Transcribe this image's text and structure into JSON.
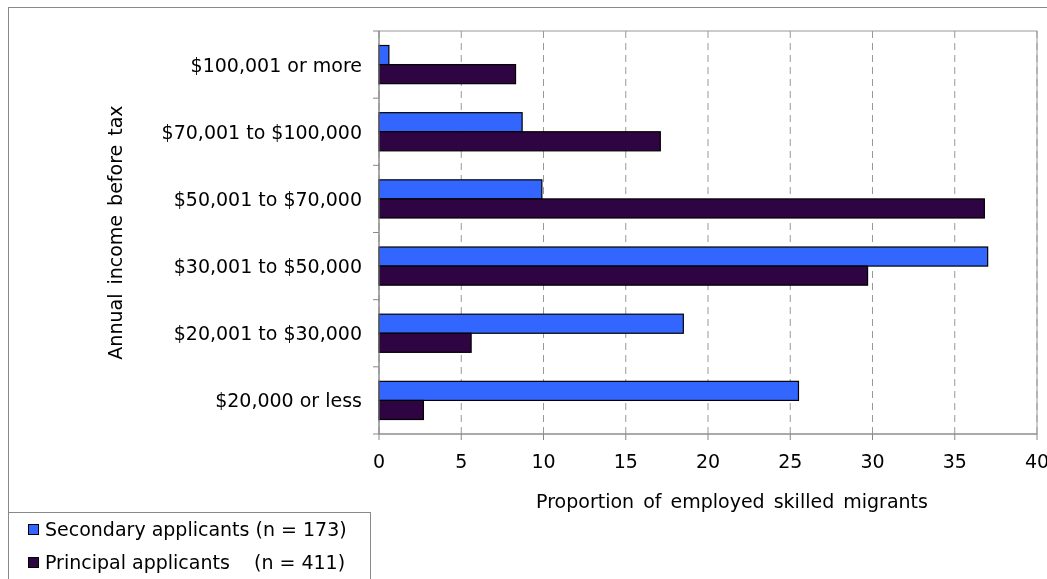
{
  "chart_data": {
    "type": "bar",
    "orientation": "horizontal",
    "ylabel": "Annual income before tax",
    "xlabel": "Proportion of employed skilled migrants",
    "categories": [
      "$100,001 or more",
      "$70,001 to $100,000",
      "$50,001 to $70,000",
      "$30,001 to $50,000",
      "$20,001 to $30,000",
      "$20,000 or less"
    ],
    "series": [
      {
        "name": "Secondary applicants (n = 173)",
        "color": "#3366ff",
        "values": [
          0.6,
          8.7,
          9.9,
          37.0,
          18.5,
          25.5
        ]
      },
      {
        "name": "Principal applicants    (n = 411)",
        "color": "#2e0542",
        "values": [
          8.3,
          17.1,
          36.8,
          29.7,
          5.6,
          2.7
        ]
      }
    ],
    "xlim": [
      0,
      40
    ],
    "xticks": [
      0,
      5,
      10,
      15,
      20,
      25,
      30,
      35,
      40
    ],
    "grid": "x",
    "legend": "bottom left"
  }
}
